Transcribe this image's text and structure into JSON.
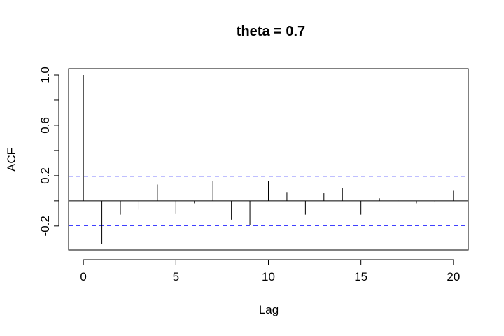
{
  "chart_data": {
    "type": "bar",
    "title": "theta = 0.7",
    "xlabel": "Lag",
    "ylabel": "ACF",
    "x": [
      0,
      1,
      2,
      3,
      4,
      5,
      6,
      7,
      8,
      9,
      10,
      11,
      12,
      13,
      14,
      15,
      16,
      17,
      18,
      19,
      20
    ],
    "values": [
      1.0,
      -0.34,
      -0.11,
      -0.07,
      0.13,
      -0.1,
      -0.02,
      0.16,
      -0.15,
      -0.19,
      0.16,
      0.07,
      -0.11,
      0.06,
      0.1,
      -0.11,
      0.02,
      0.01,
      -0.02,
      -0.01,
      0.08
    ],
    "confidence_band": 0.196,
    "band_color": "#0000ff",
    "xlim": [
      -0.8,
      20.8
    ],
    "ylim": [
      -0.39,
      1.05
    ],
    "xticks": [
      0,
      5,
      10,
      15,
      20
    ],
    "xtick_labels": [
      "0",
      "5",
      "10",
      "15",
      "20"
    ],
    "yticks": [
      -0.2,
      0.2,
      0.6,
      1.0
    ],
    "ytick_labels": [
      "-0.2",
      "0.2",
      "0.6",
      "1.0"
    ],
    "grid": false
  }
}
